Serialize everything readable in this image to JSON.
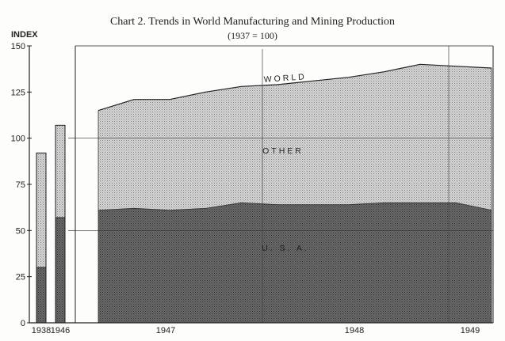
{
  "title": "Chart 2.   Trends in World Manufacturing and Mining Production",
  "subtitle": "(1937 = 100)",
  "chart_data": {
    "type": "area",
    "ylabel": "INDEX",
    "ylim": [
      0,
      150
    ],
    "yticks": [
      0,
      25,
      50,
      75,
      100,
      125,
      150
    ],
    "colors": {
      "usa": "#5a5a5a",
      "other": "#b9b9b9",
      "axis": "#222222"
    },
    "bars": {
      "type": "bar",
      "stacked": true,
      "categories": [
        "1938",
        "1946"
      ],
      "series": [
        {
          "name": "U. S. A.",
          "values": [
            30,
            57
          ]
        },
        {
          "name": "OTHER",
          "values": [
            62,
            50
          ]
        }
      ],
      "totals": [
        92,
        107
      ]
    },
    "area": {
      "x_labels": [
        "1947",
        "1948",
        "1949"
      ],
      "x": [
        "1946-08",
        "1946-11",
        "1947-02",
        "1947-05",
        "1947-08",
        "1947-11",
        "1948-02",
        "1948-05",
        "1948-08",
        "1948-11",
        "1949-02",
        "1949-04"
      ],
      "series": [
        {
          "name": "U. S. A.",
          "values": [
            61,
            62,
            61,
            62,
            65,
            64,
            64,
            64,
            65,
            65,
            65,
            61
          ]
        },
        {
          "name": "WORLD",
          "values": [
            115,
            121,
            121,
            125,
            128,
            129,
            131,
            133,
            136,
            140,
            139,
            138
          ]
        }
      ],
      "labels": {
        "world": "WORLD",
        "other": "OTHER",
        "usa": "U. S. A."
      }
    }
  }
}
